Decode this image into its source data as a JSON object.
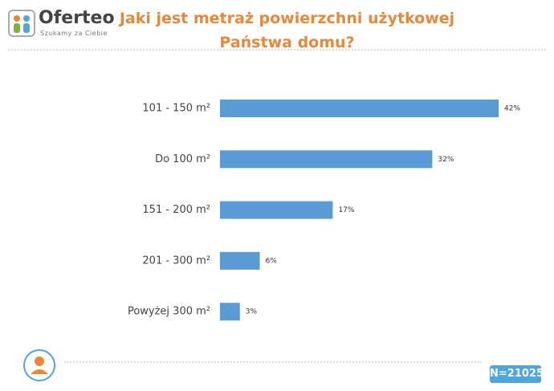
{
  "brand": {
    "name": "Oferteo",
    "tagline": "Szukamy za Ciebie"
  },
  "chart_data": {
    "type": "bar",
    "orientation": "horizontal",
    "title": "Jaki jest metraż powierzchni użytkowej Państwa domu?",
    "categories": [
      "101 - 150 m²",
      "Do 100 m²",
      "151 - 200 m²",
      "201 - 300 m²",
      "Powyżej 300 m²"
    ],
    "values": [
      42,
      32,
      17,
      6,
      3
    ],
    "value_labels": [
      "42%",
      "32%",
      "17%",
      "6%",
      "3%"
    ],
    "color": "#5b9bd5"
  },
  "sample": "N=21025"
}
